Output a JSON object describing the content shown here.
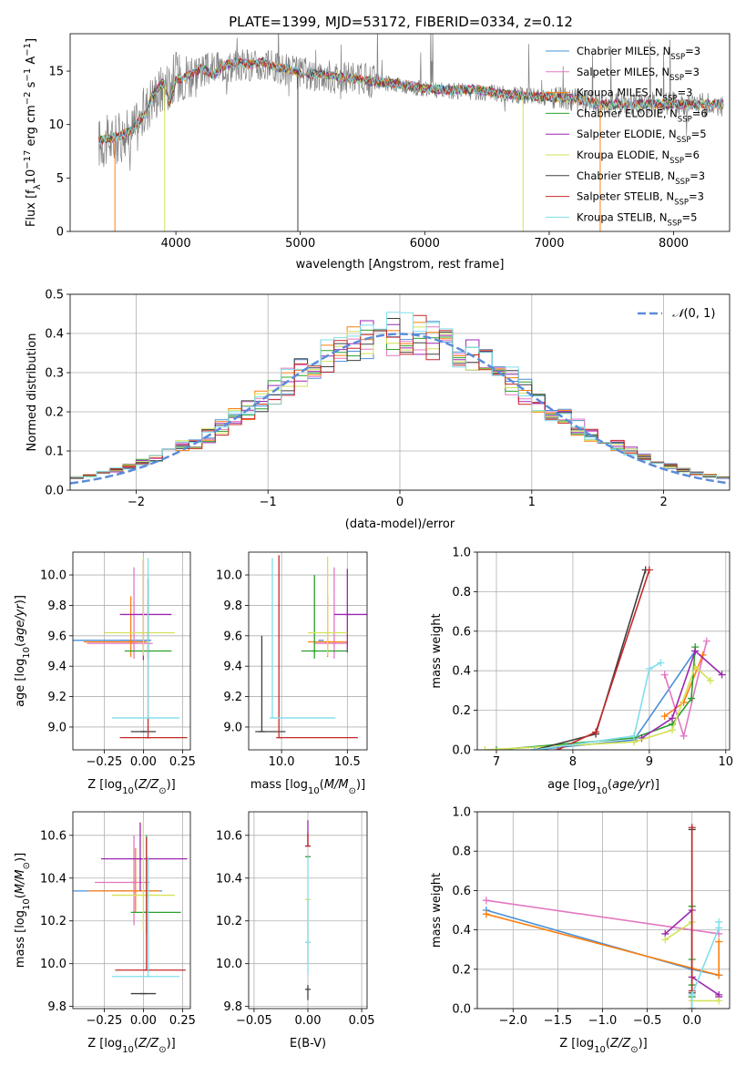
{
  "figure": {
    "title": "PLATE=1399, MJD=53172, FIBERID=0334, z=0.12"
  },
  "colors": {
    "Chabrier MILES": "#4a90d9",
    "Salpeter MILES": "#e377c2",
    "Kroupa MILES": "#ff7f0e",
    "Chabrier ELODIE": "#2ca02c",
    "Salpeter ELODIE": "#9c27b0",
    "Kroupa ELODIE": "#d4e157",
    "Chabrier STELIB": "#404040",
    "Salpeter STELIB": "#c62828",
    "Kroupa STELIB": "#80deea",
    "data": "#808080",
    "gaussian": "#5b8bd9"
  },
  "chart_data": [
    {
      "id": "spectrum",
      "type": "line",
      "xlabel": "wavelength [Angstrom, rest frame]",
      "ylabel": "Flux [f_λ 10^-17 erg cm^-2 s^-1 A^-1]",
      "xlim": [
        3150,
        8450
      ],
      "ylim": [
        0,
        18.5
      ],
      "xticks": [
        4000,
        5000,
        6000,
        7000,
        8000
      ],
      "yticks": [
        0,
        5,
        10,
        15
      ],
      "grid": false,
      "legend_position": "top-right",
      "legend": [
        {
          "label": "Chabrier MILES",
          "nssp": "3"
        },
        {
          "label": "Salpeter MILES",
          "nssp": "3"
        },
        {
          "label": "Kroupa MILES",
          "nssp": "3"
        },
        {
          "label": "Chabrier ELODIE",
          "nssp": "6"
        },
        {
          "label": "Salpeter ELODIE",
          "nssp": "5"
        },
        {
          "label": "Kroupa ELODIE",
          "nssp": "6"
        },
        {
          "label": "Chabrier STELIB",
          "nssp": "3"
        },
        {
          "label": "Salpeter STELIB",
          "nssp": "3"
        },
        {
          "label": "Kroupa STELIB",
          "nssp": "5"
        }
      ],
      "model_continuum": {
        "x": [
          3380,
          3450,
          3550,
          3650,
          3750,
          3800,
          3850,
          3900,
          3950,
          4000,
          4100,
          4200,
          4300,
          4400,
          4500,
          4600,
          4700,
          4800,
          4900,
          5000,
          5200,
          5400,
          5600,
          5800,
          6000,
          6200,
          6400,
          6600,
          6800,
          7000,
          7200,
          7400
        ],
        "y": [
          8.5,
          8.7,
          8.9,
          9.5,
          11.0,
          12.5,
          13.3,
          14.0,
          12.0,
          14.2,
          14.5,
          15.3,
          14.6,
          15.6,
          15.8,
          15.6,
          15.9,
          15.4,
          15.2,
          14.8,
          14.7,
          14.3,
          14.0,
          13.8,
          13.4,
          13.2,
          13.3,
          12.9,
          12.7,
          12.6,
          12.4,
          11.9
        ]
      },
      "data_continuum": {
        "x": [
          3380,
          3500,
          3600,
          3700,
          3800,
          3900,
          4000,
          4200,
          4400,
          4600,
          4800,
          5000,
          5500,
          6000,
          6500,
          7000,
          7500,
          8000,
          8400
        ],
        "y": [
          8.3,
          8.5,
          9.0,
          10.0,
          12.5,
          13.5,
          14.5,
          15.0,
          15.5,
          15.6,
          15.3,
          14.8,
          14.2,
          13.3,
          13.0,
          12.5,
          12.0,
          12.0,
          11.8
        ]
      },
      "cutoffs": [
        {
          "series": "Kroupa MILES",
          "x": 3510
        },
        {
          "series": "Kroupa ELODIE",
          "x": 3910
        },
        {
          "series": "Chabrier STELIB",
          "x": 4980
        },
        {
          "series": "Kroupa ELODIE",
          "x": 6790
        },
        {
          "series": "Kroupa MILES",
          "x": 7410
        }
      ]
    },
    {
      "id": "residual_histogram",
      "type": "bar",
      "xlabel": "(data-model)/error",
      "ylabel": "Normed distribution",
      "xlim": [
        -2.5,
        2.5
      ],
      "ylim": [
        0,
        0.5
      ],
      "xticks": [
        -2,
        -1,
        0,
        1,
        2
      ],
      "yticks": [
        0.0,
        0.1,
        0.2,
        0.3,
        0.4,
        0.5
      ],
      "grid": true,
      "legend_position": "top-right",
      "legend_label": "N(0,1)",
      "bin_width": 0.1
    },
    {
      "id": "Z_vs_age",
      "type": "scatter",
      "xlabel": "Z [log10(Z/Z⊙)]",
      "ylabel": "age [log10(age/yr)]",
      "xlim": [
        -0.45,
        0.3
      ],
      "ylim": [
        8.85,
        10.15
      ],
      "xticks": [
        -0.25,
        0.0,
        0.25
      ],
      "yticks": [
        9.0,
        9.2,
        9.4,
        9.6,
        9.8,
        10.0
      ],
      "grid": true,
      "points": [
        {
          "series": "Chabrier MILES",
          "x": -0.13,
          "y": 9.57,
          "xerr": [
            0.33,
            0.18
          ],
          "yerr": [
            0.0,
            0.0
          ]
        },
        {
          "series": "Salpeter MILES",
          "x": -0.06,
          "y": 9.55,
          "xerr": [
            0.3,
            0.12
          ],
          "yerr": [
            0.1,
            0.5
          ]
        },
        {
          "series": "Kroupa MILES",
          "x": -0.08,
          "y": 9.56,
          "xerr": [
            0.3,
            0.1
          ],
          "yerr": [
            0.1,
            0.3
          ]
        },
        {
          "series": "Chabrier ELODIE",
          "x": 0.03,
          "y": 9.5,
          "xerr": [
            0.15,
            0.15
          ],
          "yerr": [
            0.05,
            0.47
          ]
        },
        {
          "series": "Salpeter ELODIE",
          "x": 0.0,
          "y": 9.74,
          "xerr": [
            0.15,
            0.18
          ],
          "yerr": [
            0.3,
            0.36
          ]
        },
        {
          "series": "Kroupa ELODIE",
          "x": 0.0,
          "y": 9.62,
          "xerr": [
            0.25,
            0.2
          ],
          "yerr": [
            0.15,
            0.5
          ]
        },
        {
          "series": "Chabrier STELIB",
          "x": 0.0,
          "y": 8.97,
          "xerr": [
            0.08,
            0.08
          ],
          "yerr": [
            0.0,
            0.0
          ]
        },
        {
          "series": "Salpeter STELIB",
          "x": 0.03,
          "y": 8.93,
          "xerr": [
            0.18,
            0.25
          ],
          "yerr": [
            0.0,
            1.05
          ]
        },
        {
          "series": "Kroupa STELIB",
          "x": 0.03,
          "y": 9.06,
          "xerr": [
            0.23,
            0.2
          ],
          "yerr": [
            0.0,
            1.05
          ]
        }
      ]
    },
    {
      "id": "mass_vs_age",
      "type": "scatter",
      "xlabel": "mass [log10(M/M⊙)]",
      "ylabel": "",
      "xlim": [
        9.75,
        10.65
      ],
      "ylim": [
        8.85,
        10.15
      ],
      "xticks": [
        10.0,
        10.5
      ],
      "yticks": [
        9.0,
        9.2,
        9.4,
        9.6,
        9.8,
        10.0
      ],
      "grid": true,
      "points": [
        {
          "series": "Chabrier MILES",
          "x": 10.3,
          "y": 9.57,
          "xerr": [
            0.0,
            0.0
          ],
          "yerr": [
            0.0,
            0.0
          ]
        },
        {
          "series": "Salpeter MILES",
          "x": 10.4,
          "y": 9.55,
          "xerr": [
            0.15,
            0.1
          ],
          "yerr": [
            0.1,
            0.5
          ]
        },
        {
          "series": "Kroupa MILES",
          "x": 10.35,
          "y": 9.56,
          "xerr": [
            0.15,
            0.15
          ],
          "yerr": [
            0.1,
            0.3
          ]
        },
        {
          "series": "Chabrier ELODIE",
          "x": 10.25,
          "y": 9.5,
          "xerr": [
            0.1,
            0.25
          ],
          "yerr": [
            0.05,
            0.5
          ]
        },
        {
          "series": "Salpeter ELODIE",
          "x": 10.5,
          "y": 9.74,
          "xerr": [
            0.1,
            0.15
          ],
          "yerr": [
            0.25,
            0.3
          ]
        },
        {
          "series": "Kroupa ELODIE",
          "x": 10.35,
          "y": 9.62,
          "xerr": [
            0.15,
            0.15
          ],
          "yerr": [
            0.15,
            0.5
          ]
        },
        {
          "series": "Chabrier STELIB",
          "x": 9.85,
          "y": 8.97,
          "xerr": [
            0.05,
            0.18
          ],
          "yerr": [
            0.0,
            0.63
          ]
        },
        {
          "series": "Salpeter STELIB",
          "x": 9.98,
          "y": 8.93,
          "xerr": [
            0.0,
            0.6
          ],
          "yerr": [
            0.0,
            1.2
          ]
        },
        {
          "series": "Kroupa STELIB",
          "x": 9.93,
          "y": 9.06,
          "xerr": [
            0.0,
            0.48
          ],
          "yerr": [
            0.0,
            1.05
          ]
        }
      ]
    },
    {
      "id": "age_vs_massweight",
      "type": "line",
      "xlabel": "age [log10(age/yr)]",
      "ylabel": "mass weight",
      "xlim": [
        6.75,
        10.05
      ],
      "ylim": [
        0,
        1.0
      ],
      "xticks": [
        7,
        8,
        9,
        10
      ],
      "yticks": [
        0.0,
        0.2,
        0.4,
        0.6,
        0.8,
        1.0
      ],
      "grid": true,
      "series": [
        {
          "name": "Chabrier MILES",
          "x": [
            7.5,
            8.8,
            9.6
          ],
          "y": [
            0.0,
            0.05,
            0.5
          ]
        },
        {
          "name": "Salpeter MILES",
          "x": [
            9.2,
            9.45,
            9.75
          ],
          "y": [
            0.38,
            0.07,
            0.55
          ]
        },
        {
          "name": "Kroupa MILES",
          "x": [
            9.2,
            9.45,
            9.7
          ],
          "y": [
            0.17,
            0.24,
            0.48
          ]
        },
        {
          "name": "Chabrier ELODIE",
          "x": [
            7.0,
            8.8,
            9.3,
            9.55,
            9.6
          ],
          "y": [
            0.0,
            0.06,
            0.13,
            0.26,
            0.52
          ]
        },
        {
          "name": "Salpeter ELODIE",
          "x": [
            8.9,
            9.3,
            9.6,
            9.95
          ],
          "y": [
            0.06,
            0.16,
            0.5,
            0.38
          ]
        },
        {
          "name": "Kroupa ELODIE",
          "x": [
            6.85,
            8.8,
            9.3,
            9.6,
            9.8
          ],
          "y": [
            0.0,
            0.04,
            0.1,
            0.42,
            0.35
          ]
        },
        {
          "name": "Chabrier STELIB",
          "x": [
            7.5,
            8.3,
            8.95
          ],
          "y": [
            0.0,
            0.08,
            0.91
          ]
        },
        {
          "name": "Salpeter STELIB",
          "x": [
            7.8,
            8.3,
            9.0
          ],
          "y": [
            0.0,
            0.09,
            0.91
          ]
        },
        {
          "name": "Kroupa STELIB",
          "x": [
            7.5,
            8.8,
            9.0,
            9.15
          ],
          "y": [
            0.0,
            0.07,
            0.41,
            0.44
          ]
        }
      ]
    },
    {
      "id": "Z_vs_mass",
      "type": "scatter",
      "xlabel": "Z [log10(Z/Z⊙)]",
      "ylabel": "mass [log10(M/M⊙)]",
      "xlim": [
        -0.45,
        0.3
      ],
      "ylim": [
        9.79,
        10.71
      ],
      "xticks": [
        -0.25,
        0.0,
        0.25
      ],
      "yticks": [
        9.8,
        10.0,
        10.2,
        10.4,
        10.6
      ],
      "grid": true,
      "points": [
        {
          "series": "Chabrier MILES",
          "x": -0.13,
          "y": 10.34,
          "xerr": [
            0.32,
            0.25
          ],
          "yerr": [
            0.0,
            0.0
          ]
        },
        {
          "series": "Salpeter MILES",
          "x": -0.06,
          "y": 10.38,
          "xerr": [
            0.25,
            0.1
          ],
          "yerr": [
            0.2,
            0.22
          ]
        },
        {
          "series": "Kroupa MILES",
          "x": -0.05,
          "y": 10.34,
          "xerr": [
            0.3,
            0.15
          ],
          "yerr": [
            0.1,
            0.2
          ]
        },
        {
          "series": "Chabrier ELODIE",
          "x": 0.02,
          "y": 10.24,
          "xerr": [
            0.1,
            0.22
          ],
          "yerr": [
            0.1,
            0.36
          ]
        },
        {
          "series": "Salpeter ELODIE",
          "x": -0.02,
          "y": 10.49,
          "xerr": [
            0.25,
            0.3
          ],
          "yerr": [
            0.15,
            0.17
          ]
        },
        {
          "series": "Kroupa ELODIE",
          "x": 0.0,
          "y": 10.32,
          "xerr": [
            0.2,
            0.2
          ],
          "yerr": [
            0.17,
            0.35
          ]
        },
        {
          "series": "Chabrier STELIB",
          "x": 0.0,
          "y": 9.86,
          "xerr": [
            0.08,
            0.08
          ],
          "yerr": [
            0.0,
            0.0
          ]
        },
        {
          "series": "Salpeter STELIB",
          "x": 0.02,
          "y": 9.97,
          "xerr": [
            0.2,
            0.25
          ],
          "yerr": [
            0.0,
            0.62
          ]
        },
        {
          "series": "Kroupa STELIB",
          "x": 0.03,
          "y": 9.94,
          "xerr": [
            0.23,
            0.2
          ],
          "yerr": [
            0.0,
            0.56
          ]
        }
      ]
    },
    {
      "id": "ebv_vs_mass",
      "type": "scatter",
      "xlabel": "E(B-V)",
      "ylabel": "",
      "xlim": [
        -0.055,
        0.055
      ],
      "ylim": [
        9.79,
        10.71
      ],
      "xticks": [
        -0.05,
        0.0,
        0.05
      ],
      "yticks": [
        9.8,
        10.0,
        10.2,
        10.4,
        10.6
      ],
      "grid": true,
      "points": [
        {
          "series": "Salpeter ELODIE",
          "x": 0.0,
          "y": 10.55,
          "yerr": [
            0.0,
            0.12
          ]
        },
        {
          "series": "Salpeter STELIB",
          "x": 0.0,
          "y": 10.55,
          "yerr": [
            0.0,
            0.06
          ]
        },
        {
          "series": "Chabrier ELODIE",
          "x": 0.0,
          "y": 10.5,
          "yerr": [
            0.0,
            0.0
          ]
        },
        {
          "series": "Kroupa ELODIE",
          "x": 0.0,
          "y": 10.3,
          "yerr": [
            0.3,
            0.0
          ]
        },
        {
          "series": "Kroupa STELIB",
          "x": 0.0,
          "y": 10.1,
          "yerr": [
            0.15,
            0.4
          ]
        },
        {
          "series": "Chabrier STELIB",
          "x": 0.0,
          "y": 9.88,
          "yerr": [
            0.05,
            0.02
          ]
        }
      ]
    },
    {
      "id": "Z_vs_massweight",
      "type": "line",
      "xlabel": "Z [log10(Z/Z⊙)]",
      "ylabel": "mass weight",
      "xlim": [
        -2.4,
        0.42
      ],
      "ylim": [
        0,
        1.0
      ],
      "xticks": [
        -2.0,
        -1.5,
        -1.0,
        -0.5,
        0.0
      ],
      "yticks": [
        0.0,
        0.2,
        0.4,
        0.6,
        0.8,
        1.0
      ],
      "grid": true,
      "series": [
        {
          "name": "Chabrier MILES",
          "x": [
            -2.3,
            0.0,
            0.3
          ],
          "y": [
            0.5,
            0.2,
            0.17
          ]
        },
        {
          "name": "Salpeter MILES",
          "x": [
            -2.3,
            0.3
          ],
          "y": [
            0.55,
            0.38
          ]
        },
        {
          "name": "Kroupa MILES",
          "x": [
            -2.3,
            0.3,
            0.3
          ],
          "y": [
            0.48,
            0.17,
            0.34
          ]
        },
        {
          "name": "Chabrier ELODIE",
          "x": [
            0.0,
            0.0,
            0.0,
            0.0
          ],
          "y": [
            0.06,
            0.12,
            0.25,
            0.52
          ]
        },
        {
          "name": "Salpeter ELODIE",
          "x": [
            -0.3,
            0.0,
            0.0,
            0.3,
            0.3
          ],
          "y": [
            0.38,
            0.5,
            0.16,
            0.07,
            0.06
          ]
        },
        {
          "name": "Kroupa ELODIE",
          "x": [
            -0.3,
            0.0,
            0.0,
            0.3
          ],
          "y": [
            0.35,
            0.44,
            0.04,
            0.04
          ]
        },
        {
          "name": "Chabrier STELIB",
          "x": [
            0.0,
            0.0,
            0.0
          ],
          "y": [
            0.0,
            0.08,
            0.91
          ]
        },
        {
          "name": "Salpeter STELIB",
          "x": [
            0.0,
            0.0,
            0.0
          ],
          "y": [
            0.0,
            0.09,
            0.92
          ]
        },
        {
          "name": "Kroupa STELIB",
          "x": [
            0.0,
            0.0,
            0.3,
            0.3
          ],
          "y": [
            0.0,
            0.07,
            0.41,
            0.44
          ]
        }
      ]
    }
  ]
}
